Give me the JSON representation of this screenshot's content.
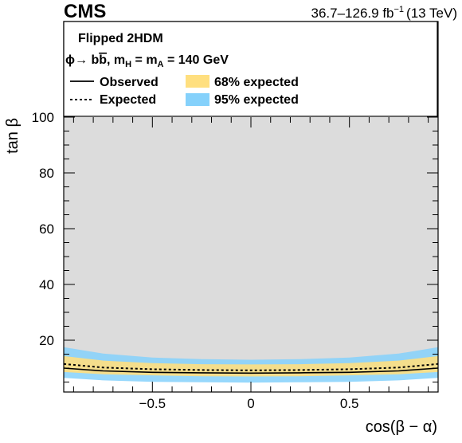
{
  "header": {
    "experiment": "CMS",
    "luminosity": "36.7–126.9 fb",
    "lumi_exponent": "−1",
    "energy": "(13 TeV)"
  },
  "legend": {
    "model": "Flipped 2HDM",
    "process_pre": "ϕ→ b",
    "process_bbar": "b",
    "process_m1": ", m",
    "sub_h": "H",
    "process_eq": " = m",
    "sub_a": "A",
    "process_post": " = 140 GeV",
    "observed": "Observed",
    "expected": "Expected",
    "band68": "68% expected",
    "band95": "95% expected"
  },
  "colors": {
    "excluded_fill": "#dcdcdc",
    "band68": "#ffdf7f",
    "band95": "#85d1fb",
    "observed_line": "#000000"
  },
  "chart_data": {
    "type": "line",
    "xlabel": "cos(β − α)",
    "ylabel": "tan β",
    "xlim": [
      -0.95,
      0.95
    ],
    "ylim": [
      0.5,
      100
    ],
    "x_ticks": [
      -0.5,
      0,
      0.5
    ],
    "x_tick_labels": [
      "−0.5",
      "0",
      "0.5"
    ],
    "y_ticks": [
      20,
      40,
      60,
      80,
      100
    ],
    "y_tick_labels": [
      "20",
      "40",
      "60",
      "80",
      "100"
    ],
    "excluded_region": "above observed limit (shaded grey)",
    "x": [
      -0.95,
      -0.75,
      -0.5,
      -0.25,
      0,
      0.25,
      0.5,
      0.75,
      0.95
    ],
    "series": [
      {
        "name": "Observed",
        "values": [
          10.0,
          9.0,
          8.5,
          8.3,
          8.2,
          8.3,
          8.5,
          9.0,
          10.0
        ]
      },
      {
        "name": "Expected",
        "values": [
          11.5,
          10.2,
          9.6,
          9.3,
          9.2,
          9.3,
          9.6,
          10.2,
          11.5
        ]
      }
    ],
    "bands": [
      {
        "name": "95% expected",
        "low": [
          6.5,
          5.6,
          5.1,
          4.9,
          4.8,
          4.9,
          5.1,
          5.6,
          6.5
        ],
        "high": [
          17.5,
          15.2,
          13.8,
          13.2,
          13.0,
          13.2,
          13.8,
          15.2,
          17.5
        ]
      },
      {
        "name": "68% expected",
        "low": [
          8.6,
          7.8,
          7.4,
          7.1,
          7.0,
          7.1,
          7.4,
          7.8,
          8.6
        ],
        "high": [
          14.3,
          12.7,
          11.8,
          11.4,
          11.3,
          11.4,
          11.8,
          12.7,
          14.3
        ]
      }
    ]
  }
}
